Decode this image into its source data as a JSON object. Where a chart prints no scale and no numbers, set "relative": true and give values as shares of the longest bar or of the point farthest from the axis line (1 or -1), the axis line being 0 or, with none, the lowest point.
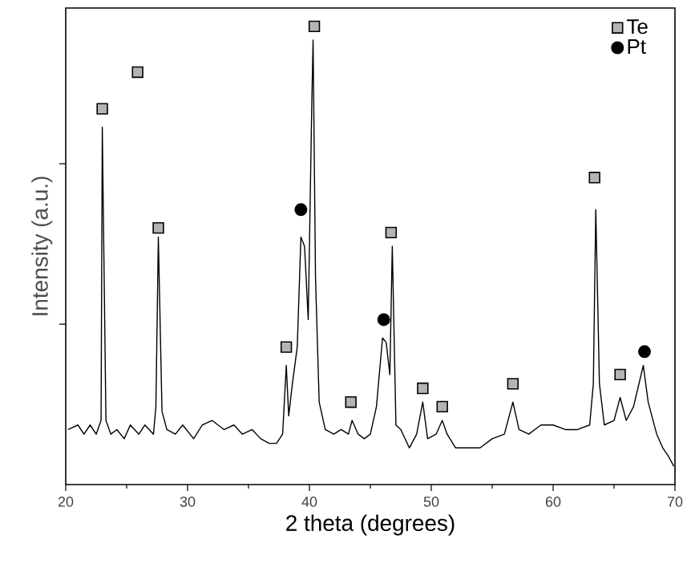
{
  "chart_data": {
    "type": "line",
    "xlabel": "2 theta (degrees)",
    "ylabel": "Intensity (a.u.)",
    "relative": true,
    "xlim": [
      20,
      70
    ],
    "xticks": [
      20,
      30,
      40,
      50,
      60,
      70
    ],
    "tick_labels": "x",
    "legend": "top right",
    "grid": false,
    "series": [
      {
        "color": "#000000",
        "marker": "none",
        "line_style": "solid",
        "x": [
          20.2,
          21,
          21.5,
          22,
          22.5,
          22.9,
          23.0,
          23.3,
          23.7,
          24.2,
          24.8,
          25.3,
          26,
          26.5,
          27.2,
          27.4,
          27.6,
          27.9,
          28.3,
          29,
          29.6,
          30.5,
          31.2,
          32,
          33,
          33.8,
          34.5,
          35.3,
          36,
          36.7,
          37.3,
          37.8,
          38.1,
          38.3,
          38.6,
          39,
          39.3,
          39.6,
          39.9,
          40.2,
          40.3,
          40.5,
          40.8,
          41.3,
          42,
          42.6,
          43.2,
          43.5,
          44,
          44.5,
          45,
          45.5,
          46,
          46.3,
          46.6,
          46.8,
          47.1,
          47.5,
          48.2,
          48.8,
          49.3,
          49.7,
          50.4,
          50.9,
          51.3,
          52,
          53,
          54,
          55,
          56,
          56.7,
          57.2,
          58,
          59,
          60,
          61,
          62,
          63,
          63.3,
          63.5,
          63.8,
          64.2,
          65,
          65.5,
          66,
          66.6,
          67.4,
          67.8,
          68.5,
          69,
          69.5,
          69.9
        ],
        "values": [
          0.12,
          0.13,
          0.11,
          0.13,
          0.11,
          0.14,
          0.78,
          0.14,
          0.11,
          0.12,
          0.1,
          0.13,
          0.11,
          0.13,
          0.11,
          0.17,
          0.54,
          0.16,
          0.12,
          0.11,
          0.13,
          0.1,
          0.13,
          0.14,
          0.12,
          0.13,
          0.11,
          0.12,
          0.1,
          0.09,
          0.09,
          0.11,
          0.26,
          0.15,
          0.22,
          0.3,
          0.54,
          0.52,
          0.36,
          0.84,
          0.97,
          0.45,
          0.18,
          0.12,
          0.11,
          0.12,
          0.11,
          0.14,
          0.11,
          0.1,
          0.11,
          0.17,
          0.32,
          0.31,
          0.24,
          0.52,
          0.13,
          0.12,
          0.08,
          0.11,
          0.18,
          0.1,
          0.11,
          0.14,
          0.11,
          0.08,
          0.08,
          0.08,
          0.1,
          0.11,
          0.18,
          0.12,
          0.11,
          0.13,
          0.13,
          0.12,
          0.12,
          0.13,
          0.22,
          0.6,
          0.22,
          0.13,
          0.14,
          0.19,
          0.14,
          0.17,
          0.26,
          0.18,
          0.11,
          0.08,
          0.06,
          0.04
        ]
      },
      {
        "type": "scatter",
        "name": "Te",
        "color": "#b4b4b4",
        "marker": "square",
        "x": [
          23.0,
          25.9,
          27.6,
          38.1,
          40.4,
          43.4,
          46.7,
          49.3,
          50.9,
          56.7,
          63.4,
          65.5
        ],
        "values": [
          0.82,
          0.9,
          0.56,
          0.3,
          1.0,
          0.18,
          0.55,
          0.21,
          0.17,
          0.22,
          0.67,
          0.24
        ]
      },
      {
        "type": "scatter",
        "name": "Pt",
        "color": "#000000",
        "marker": "circle",
        "x": [
          39.3,
          46.1,
          67.5
        ],
        "values": [
          0.6,
          0.36,
          0.29
        ]
      }
    ]
  }
}
